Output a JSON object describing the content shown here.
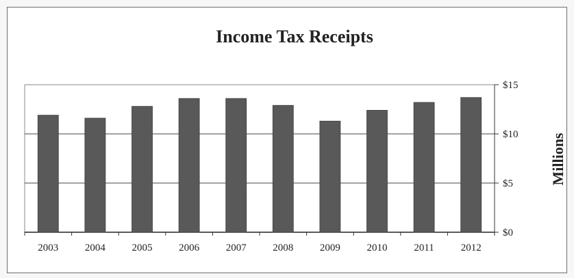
{
  "chart_data": {
    "type": "bar",
    "title": "Income Tax Receipts",
    "ylabel": "Millions",
    "categories": [
      "2003",
      "2004",
      "2005",
      "2006",
      "2007",
      "2008",
      "2009",
      "2010",
      "2011",
      "2012"
    ],
    "values": [
      11.9,
      11.6,
      12.8,
      13.6,
      13.6,
      12.9,
      11.3,
      12.4,
      13.2,
      13.7
    ],
    "ylim": [
      0,
      15
    ],
    "yticks": [
      0,
      5,
      10,
      15
    ],
    "ytick_labels": [
      "$0",
      "$5",
      "$10",
      "$15"
    ],
    "y_axis_side": "right",
    "grid": true,
    "bar_color": "#595959"
  }
}
